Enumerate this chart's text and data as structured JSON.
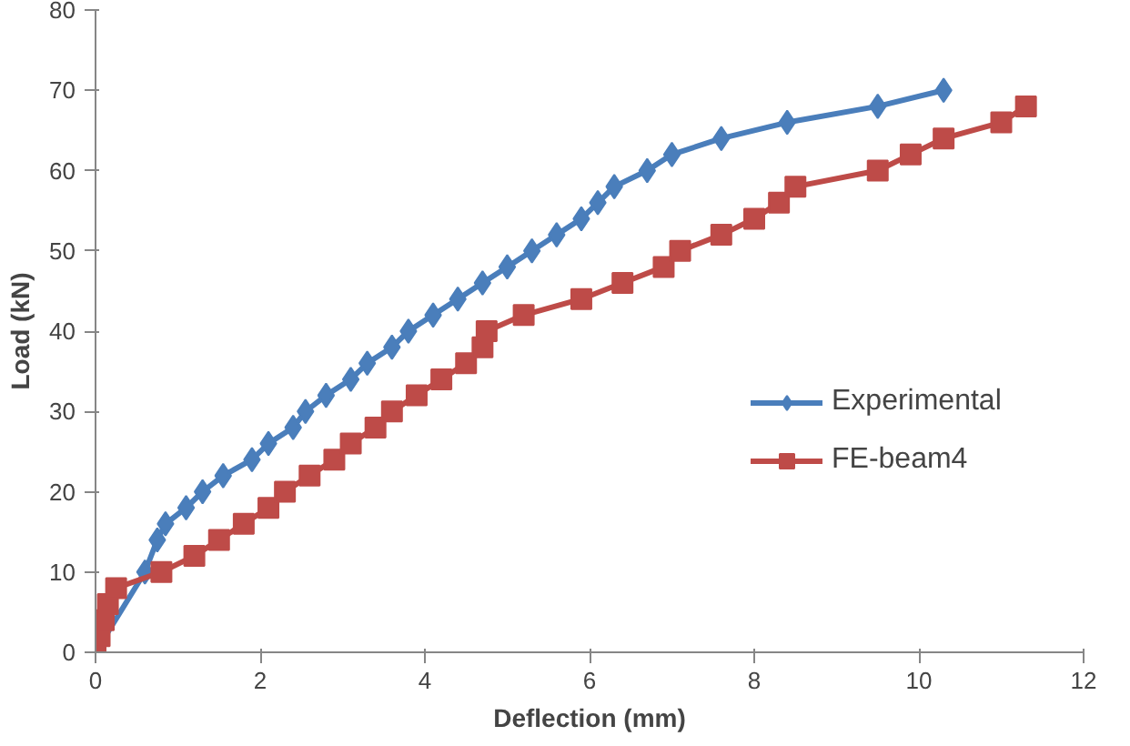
{
  "chart_data": {
    "type": "line",
    "xlabel": "Deflection (mm)",
    "ylabel": "Load (kN)",
    "xlim": [
      0,
      12
    ],
    "ylim": [
      0,
      80
    ],
    "xticks": [
      0,
      2,
      4,
      6,
      8,
      10,
      12
    ],
    "yticks": [
      0,
      10,
      20,
      30,
      40,
      50,
      60,
      70,
      80
    ],
    "grid": false,
    "legend": "right",
    "series": [
      {
        "name": "Experimental",
        "color": "#4a7ebb",
        "marker": "diamond",
        "x": [
          0,
          0.6,
          0.75,
          0.85,
          1.1,
          1.3,
          1.55,
          1.9,
          2.1,
          2.4,
          2.55,
          2.8,
          3.1,
          3.3,
          3.6,
          3.8,
          4.1,
          4.4,
          4.7,
          5.0,
          5.3,
          5.6,
          5.9,
          6.1,
          6.3,
          6.7,
          7.0,
          7.6,
          8.4,
          9.5,
          10.3
        ],
        "values": [
          0,
          10,
          14,
          16,
          18,
          20,
          22,
          24,
          26,
          28,
          30,
          32,
          34,
          36,
          38,
          40,
          42,
          44,
          46,
          48,
          50,
          52,
          54,
          56,
          58,
          60,
          62,
          64,
          66,
          68,
          70
        ]
      },
      {
        "name": "FE-beam4",
        "color": "#be4b48",
        "marker": "square",
        "x": [
          0,
          0.05,
          0.1,
          0.15,
          0.25,
          0.8,
          1.2,
          1.5,
          1.8,
          2.1,
          2.3,
          2.6,
          2.9,
          3.1,
          3.4,
          3.6,
          3.9,
          4.2,
          4.5,
          4.7,
          4.75,
          5.2,
          5.9,
          6.4,
          6.9,
          7.1,
          7.6,
          8.0,
          8.3,
          8.5,
          9.5,
          9.9,
          10.3,
          11.0,
          11.3
        ],
        "values": [
          0,
          2,
          4,
          6,
          8,
          10,
          12,
          14,
          16,
          18,
          20,
          22,
          24,
          26,
          28,
          30,
          32,
          34,
          36,
          38,
          40,
          42,
          44,
          46,
          48,
          50,
          52,
          54,
          56,
          58,
          60,
          62,
          64,
          66,
          68
        ]
      }
    ]
  }
}
